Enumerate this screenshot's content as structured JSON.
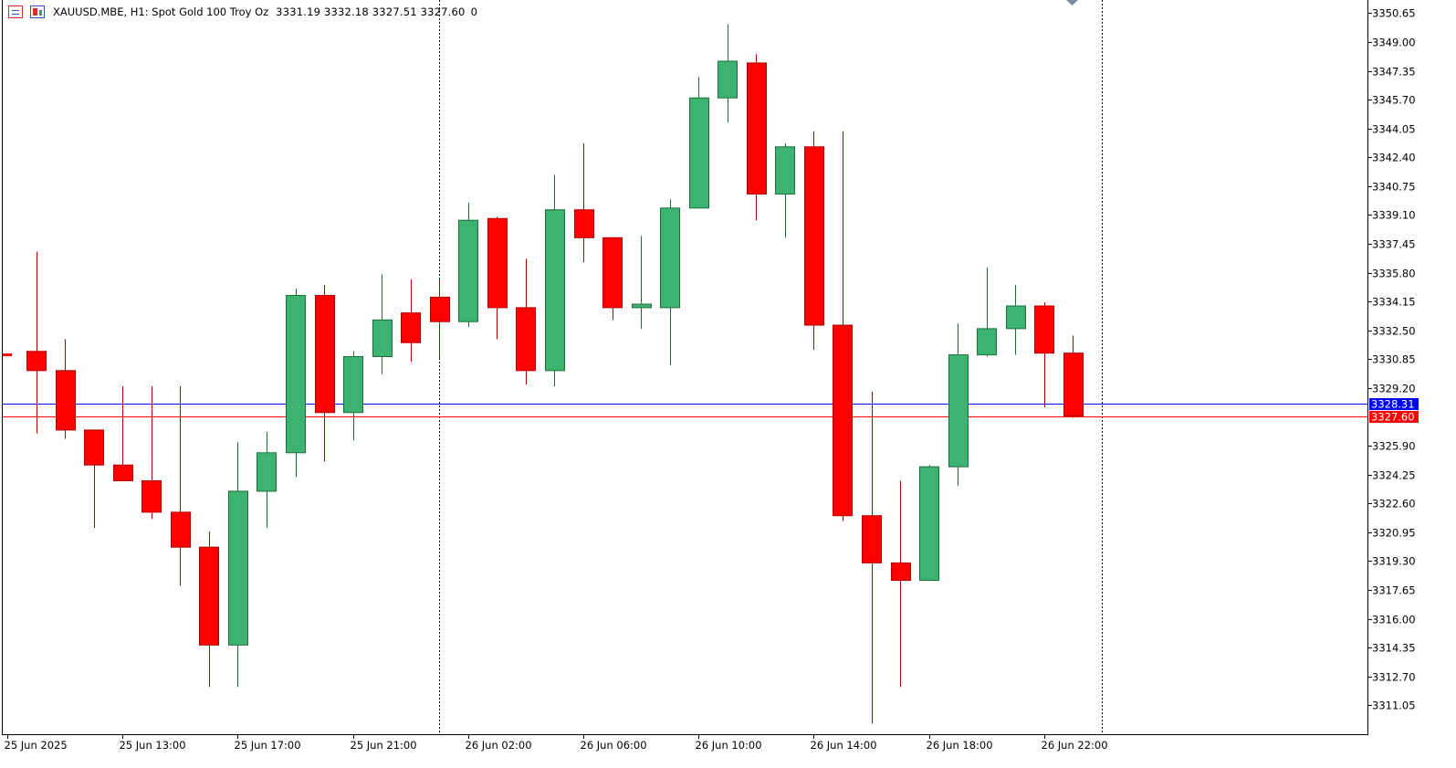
{
  "header": {
    "symbol_line": "XAUUSD.MBE, H1:  Spot Gold 100 Troy Oz",
    "ohlc": "3331.19 3332.18 3327.51 3327.60",
    "volume": "0",
    "list_icon": "list-icon",
    "chart_icon": "candle-chart-icon"
  },
  "colors": {
    "bull": "#3cb371",
    "bull_border": "#1e6e3c",
    "bear": "#ff0000",
    "bear_border": "#b00000",
    "bid_line": "#0000ff",
    "ask_line": "#ff0000",
    "axis": "#000000",
    "separator": "#000000"
  },
  "chart_data": {
    "type": "candlestick",
    "timeframe": "H1",
    "ylim": [
      3309.4,
      3351.4
    ],
    "y_ticks": [
      "3350.65",
      "3349.00",
      "3347.35",
      "3345.70",
      "3344.05",
      "3342.40",
      "3340.75",
      "3339.10",
      "3337.45",
      "3335.80",
      "3334.15",
      "3332.50",
      "3330.85",
      "3329.20",
      "3325.90",
      "3324.25",
      "3322.60",
      "3320.95",
      "3319.30",
      "3317.65",
      "3316.00",
      "3314.35",
      "3312.70",
      "3311.05"
    ],
    "x_labels": [
      {
        "label": "25 Jun 2025",
        "index": 0
      },
      {
        "label": "25 Jun 13:00",
        "index": 4
      },
      {
        "label": "25 Jun 17:00",
        "index": 8
      },
      {
        "label": "25 Jun 21:00",
        "index": 12
      },
      {
        "label": "26 Jun 02:00",
        "index": 16
      },
      {
        "label": "26 Jun 06:00",
        "index": 20
      },
      {
        "label": "26 Jun 10:00",
        "index": 24
      },
      {
        "label": "26 Jun 14:00",
        "index": 28
      },
      {
        "label": "26 Jun 18:00",
        "index": 32
      },
      {
        "label": "26 Jun 22:00",
        "index": 36
      }
    ],
    "separators": [
      15,
      38
    ],
    "bid": {
      "value": 3328.31,
      "label": "3328.31"
    },
    "last": {
      "value": 3327.6,
      "label": "3327.60"
    },
    "candles": [
      {
        "o": 3331.1,
        "h": 3331.3,
        "l": 3331.0,
        "c": 3331.0
      },
      {
        "o": 3331.3,
        "h": 3337.0,
        "l": 3326.6,
        "c": 3330.2
      },
      {
        "o": 3330.2,
        "h": 3332.0,
        "l": 3326.3,
        "c": 3326.8
      },
      {
        "o": 3326.8,
        "h": 3326.8,
        "l": 3321.2,
        "c": 3324.8
      },
      {
        "o": 3324.8,
        "h": 3329.3,
        "l": 3323.9,
        "c": 3323.9
      },
      {
        "o": 3323.9,
        "h": 3329.3,
        "l": 3321.7,
        "c": 3322.1
      },
      {
        "o": 3322.1,
        "h": 3329.3,
        "l": 3317.9,
        "c": 3320.1
      },
      {
        "o": 3320.1,
        "h": 3321.0,
        "l": 3312.1,
        "c": 3314.5
      },
      {
        "o": 3314.5,
        "h": 3326.1,
        "l": 3312.1,
        "c": 3323.3
      },
      {
        "o": 3323.3,
        "h": 3326.7,
        "l": 3321.2,
        "c": 3325.5
      },
      {
        "o": 3325.5,
        "h": 3334.9,
        "l": 3324.1,
        "c": 3334.5
      },
      {
        "o": 3334.5,
        "h": 3335.1,
        "l": 3325.0,
        "c": 3327.8
      },
      {
        "o": 3327.8,
        "h": 3331.3,
        "l": 3326.2,
        "c": 3331.0
      },
      {
        "o": 3331.0,
        "h": 3335.7,
        "l": 3330.0,
        "c": 3333.1
      },
      {
        "o": 3333.5,
        "h": 3335.4,
        "l": 3330.7,
        "c": 3331.8
      },
      {
        "o": 3334.4,
        "h": 3335.4,
        "l": 3330.9,
        "c": 3333.0
      },
      {
        "o": 3333.0,
        "h": 3339.8,
        "l": 3332.7,
        "c": 3338.8
      },
      {
        "o": 3338.9,
        "h": 3339.0,
        "l": 3332.0,
        "c": 3333.8
      },
      {
        "o": 3333.8,
        "h": 3336.6,
        "l": 3329.4,
        "c": 3330.2
      },
      {
        "o": 3330.2,
        "h": 3341.4,
        "l": 3329.3,
        "c": 3339.4
      },
      {
        "o": 3339.4,
        "h": 3343.2,
        "l": 3336.4,
        "c": 3337.8
      },
      {
        "o": 3337.8,
        "h": 3337.8,
        "l": 3333.1,
        "c": 3333.8
      },
      {
        "o": 3333.8,
        "h": 3337.9,
        "l": 3332.6,
        "c": 3334.0
      },
      {
        "o": 3333.8,
        "h": 3340.0,
        "l": 3330.5,
        "c": 3339.5
      },
      {
        "o": 3339.5,
        "h": 3347.0,
        "l": 3339.5,
        "c": 3345.8
      },
      {
        "o": 3345.8,
        "h": 3350.0,
        "l": 3344.4,
        "c": 3347.9
      },
      {
        "o": 3347.8,
        "h": 3348.3,
        "l": 3338.8,
        "c": 3340.3
      },
      {
        "o": 3340.3,
        "h": 3343.2,
        "l": 3337.8,
        "c": 3343.0
      },
      {
        "o": 3343.0,
        "h": 3343.9,
        "l": 3331.4,
        "c": 3332.8
      },
      {
        "o": 3332.8,
        "h": 3343.9,
        "l": 3321.6,
        "c": 3321.9
      },
      {
        "o": 3321.9,
        "h": 3329.0,
        "l": 3310.0,
        "c": 3319.2
      },
      {
        "o": 3319.2,
        "h": 3323.9,
        "l": 3312.1,
        "c": 3318.2
      },
      {
        "o": 3318.2,
        "h": 3324.8,
        "l": 3318.2,
        "c": 3324.7
      },
      {
        "o": 3324.7,
        "h": 3332.9,
        "l": 3323.6,
        "c": 3331.1
      },
      {
        "o": 3331.1,
        "h": 3336.1,
        "l": 3331.0,
        "c": 3332.6
      },
      {
        "o": 3332.6,
        "h": 3335.1,
        "l": 3331.1,
        "c": 3333.9
      },
      {
        "o": 3333.9,
        "h": 3334.1,
        "l": 3328.1,
        "c": 3331.2
      },
      {
        "o": 3331.2,
        "h": 3332.2,
        "l": 3327.5,
        "c": 3327.6
      }
    ]
  }
}
